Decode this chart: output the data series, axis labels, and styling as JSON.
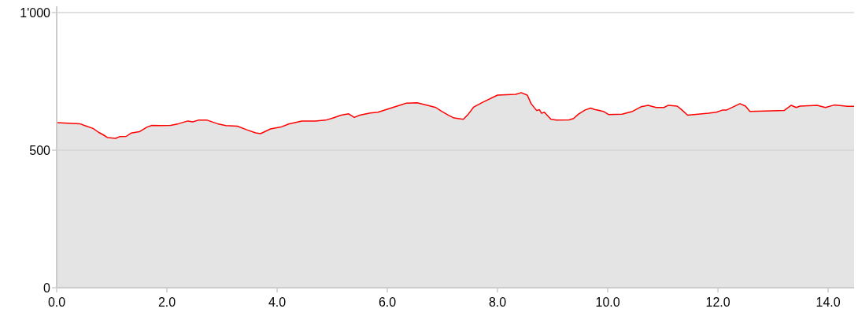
{
  "chart_data": {
    "type": "area",
    "x": [
      0,
      0.42,
      0.5,
      0.66,
      0.76,
      0.85,
      0.92,
      1.07,
      1.14,
      1.26,
      1.35,
      1.5,
      1.64,
      1.73,
      1.88,
      2.07,
      2.21,
      2.38,
      2.47,
      2.57,
      2.73,
      2.92,
      3.07,
      3.28,
      3.45,
      3.61,
      3.7,
      3.88,
      4.07,
      4.21,
      4.45,
      4.69,
      4.88,
      5.02,
      5.16,
      5.3,
      5.4,
      5.5,
      5.69,
      5.83,
      6.02,
      6.21,
      6.35,
      6.54,
      6.73,
      6.88,
      6.97,
      7.11,
      7.21,
      7.38,
      7.47,
      7.57,
      7.73,
      8.0,
      8.33,
      8.43,
      8.54,
      8.61,
      8.71,
      8.76,
      8.8,
      8.85,
      8.97,
      9.07,
      9.3,
      9.38,
      9.47,
      9.59,
      9.69,
      9.76,
      9.92,
      10.02,
      10.26,
      10.45,
      10.61,
      10.73,
      10.88,
      11.02,
      11.1,
      11.26,
      11.33,
      11.45,
      11.83,
      11.97,
      12.09,
      12.16,
      12.4,
      12.5,
      12.58,
      12.97,
      13.2,
      13.33,
      13.42,
      13.49,
      13.8,
      13.95,
      14.11,
      14.35,
      14.47
    ],
    "series": [
      {
        "color": "#ff0000",
        "values": [
          600,
          596,
          590,
          579,
          565,
          555,
          546,
          543,
          549,
          550,
          562,
          567,
          584,
          590,
          589,
          590,
          596,
          606,
          603,
          609,
          609,
          596,
          589,
          587,
          574,
          563,
          560,
          577,
          584,
          595,
          606,
          606,
          609,
          617,
          627,
          632,
          619,
          627,
          635,
          638,
          650,
          662,
          671,
          672,
          663,
          655,
          643,
          627,
          617,
          612,
          631,
          657,
          674,
          700,
          703,
          709,
          700,
          669,
          644,
          647,
          634,
          638,
          612,
          609,
          610,
          615,
          631,
          646,
          653,
          648,
          641,
          629,
          631,
          641,
          658,
          663,
          655,
          655,
          663,
          660,
          649,
          627,
          634,
          638,
          646,
          646,
          669,
          660,
          641,
          643,
          644,
          663,
          655,
          660,
          663,
          655,
          664,
          659,
          659
        ]
      }
    ],
    "xlim": [
      0,
      14.47
    ],
    "ylim": [
      0,
      1000
    ],
    "xticks": [
      {
        "value": 0,
        "label": "0.0"
      },
      {
        "value": 2,
        "label": "2.0"
      },
      {
        "value": 4,
        "label": "4.0"
      },
      {
        "value": 6,
        "label": "6.0"
      },
      {
        "value": 8,
        "label": "8.0"
      },
      {
        "value": 10,
        "label": "10.0"
      },
      {
        "value": 12,
        "label": "12.0"
      },
      {
        "value": 14,
        "label": "14.0"
      }
    ],
    "yticks": [
      0,
      500,
      {
        "value": 1000,
        "label": "1'000"
      }
    ],
    "grid": "y"
  }
}
